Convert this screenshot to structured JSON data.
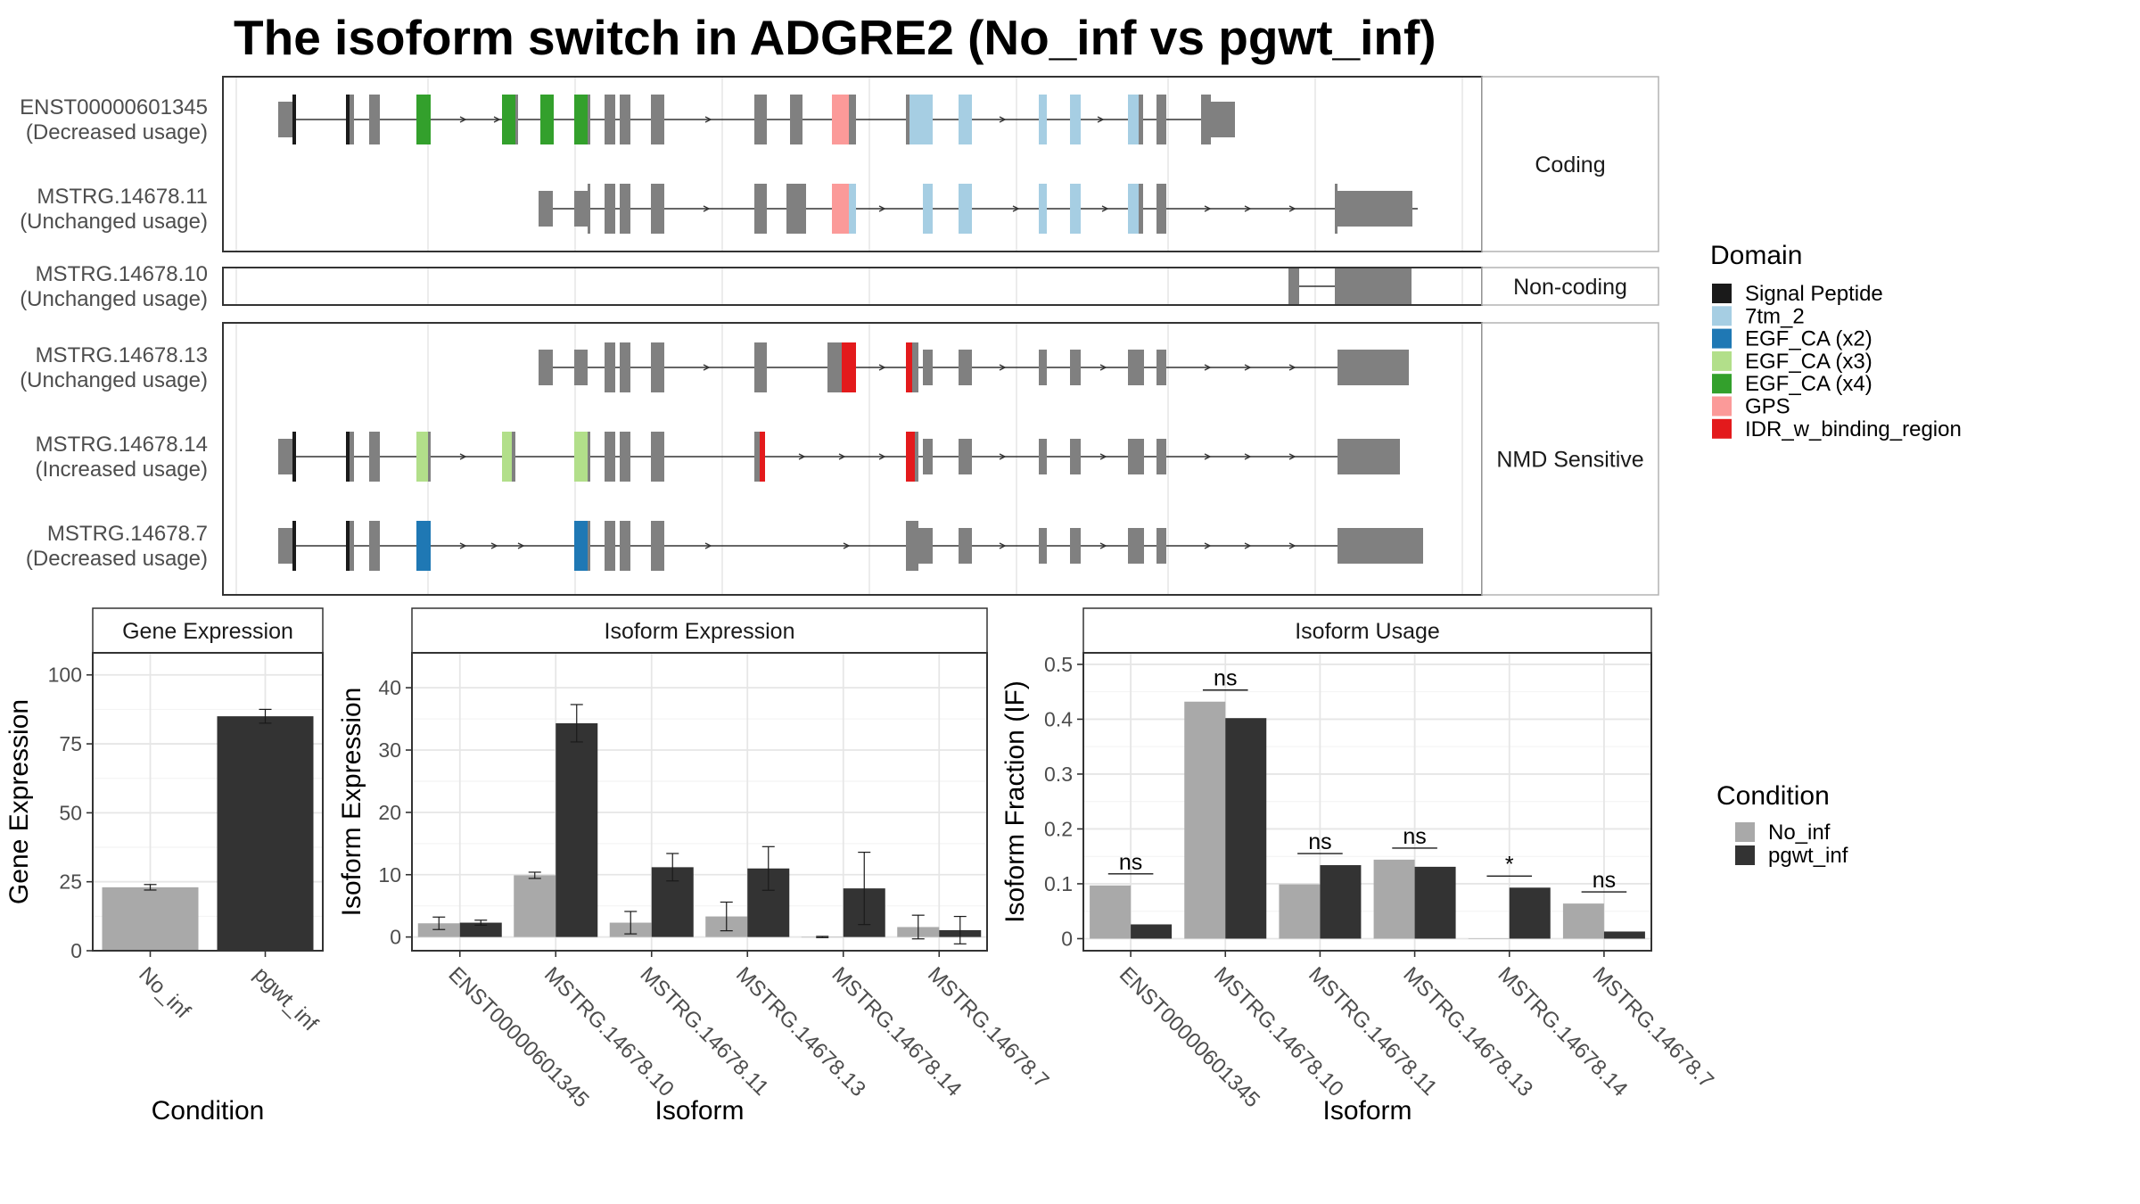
{
  "title": "The isoform switch in ADGRE2 (No_inf vs pgwt_inf)",
  "colors": {
    "exon": "#808080",
    "signal_peptide": "#1a1a1a",
    "7tm_2": "#a6cee3",
    "egf_ca_x2": "#1f78b4",
    "egf_ca_x3": "#b2df8a",
    "egf_ca_x4": "#33a02c",
    "gps": "#fb9a99",
    "idr": "#e31a1c",
    "no_inf": "#a9a9a9",
    "pgwt_inf": "#333333"
  },
  "structure": {
    "facets": [
      {
        "label": "Coding",
        "isoforms": [
          {
            "id": "ENST00000601345",
            "usage": "(Decreased usage)"
          },
          {
            "id": "MSTRG.14678.11",
            "usage": "(Unchanged usage)"
          }
        ]
      },
      {
        "label": "Non-coding",
        "isoforms": [
          {
            "id": "MSTRG.14678.10",
            "usage": "(Unchanged usage)"
          }
        ]
      },
      {
        "label": "NMD Sensitive",
        "isoforms": [
          {
            "id": "MSTRG.14678.13",
            "usage": "(Unchanged usage)"
          },
          {
            "id": "MSTRG.14678.14",
            "usage": "(Increased usage)"
          },
          {
            "id": "MSTRG.14678.7",
            "usage": "(Decreased usage)"
          }
        ]
      }
    ]
  },
  "legend_domain": {
    "title": "Domain",
    "items": [
      {
        "label": "Signal Peptide",
        "color": "#1a1a1a"
      },
      {
        "label": "7tm_2",
        "color": "#a6cee3"
      },
      {
        "label": "EGF_CA (x2)",
        "color": "#1f78b4"
      },
      {
        "label": "EGF_CA (x3)",
        "color": "#b2df8a"
      },
      {
        "label": "EGF_CA (x4)",
        "color": "#33a02c"
      },
      {
        "label": "GPS",
        "color": "#fb9a99"
      },
      {
        "label": "IDR_w_binding_region",
        "color": "#e31a1c"
      }
    ]
  },
  "legend_condition": {
    "title": "Condition",
    "items": [
      {
        "label": "No_inf",
        "color": "#a9a9a9"
      },
      {
        "label": "pgwt_inf",
        "color": "#333333"
      }
    ]
  },
  "chart_data": [
    {
      "type": "bar",
      "title": "Gene Expression",
      "xlabel": "Condition",
      "ylabel": "Gene Expression",
      "categories": [
        "No_inf",
        "pgwt_inf"
      ],
      "values": [
        23,
        85
      ],
      "errors": [
        1,
        2.5
      ],
      "ylim": [
        0,
        108
      ],
      "yticks": [
        0,
        25,
        50,
        75,
        100
      ],
      "grid": true
    },
    {
      "type": "bar",
      "title": "Isoform Expression",
      "xlabel": "Isoform",
      "ylabel": "Isoform Expression",
      "categories": [
        "ENST00000601345",
        "MSTRG.14678.10",
        "MSTRG.14678.11",
        "MSTRG.14678.13",
        "MSTRG.14678.14",
        "MSTRG.14678.7"
      ],
      "series": [
        {
          "name": "No_inf",
          "values": [
            2.2,
            9.9,
            2.3,
            3.3,
            0.0,
            1.6
          ],
          "errors": [
            1.0,
            0.5,
            1.8,
            2.3,
            0.1,
            1.9
          ]
        },
        {
          "name": "pgwt_inf",
          "values": [
            2.3,
            34.3,
            11.2,
            11.0,
            7.8,
            1.1
          ],
          "errors": [
            0.4,
            3.0,
            2.2,
            3.5,
            5.8,
            2.2
          ]
        }
      ],
      "ylim": [
        -2.2,
        45.6
      ],
      "yticks": [
        0,
        10,
        20,
        30,
        40
      ],
      "grid": true
    },
    {
      "type": "bar",
      "title": "Isoform Usage",
      "xlabel": "Isoform",
      "ylabel": "Isoform Fraction (IF)",
      "categories": [
        "ENST00000601345",
        "MSTRG.14678.10",
        "MSTRG.14678.11",
        "MSTRG.14678.13",
        "MSTRG.14678.14",
        "MSTRG.14678.7"
      ],
      "series": [
        {
          "name": "No_inf",
          "values": [
            0.097,
            0.432,
            0.099,
            0.144,
            0.0,
            0.064
          ]
        },
        {
          "name": "pgwt_inf",
          "values": [
            0.026,
            0.402,
            0.134,
            0.131,
            0.093,
            0.013
          ]
        }
      ],
      "significance": [
        "ns",
        "ns",
        "ns",
        "ns",
        "*",
        "ns"
      ],
      "ylim": [
        -0.022,
        0.521
      ],
      "yticks": [
        0.0,
        0.1,
        0.2,
        0.3,
        0.4,
        0.5
      ],
      "grid": true
    }
  ]
}
